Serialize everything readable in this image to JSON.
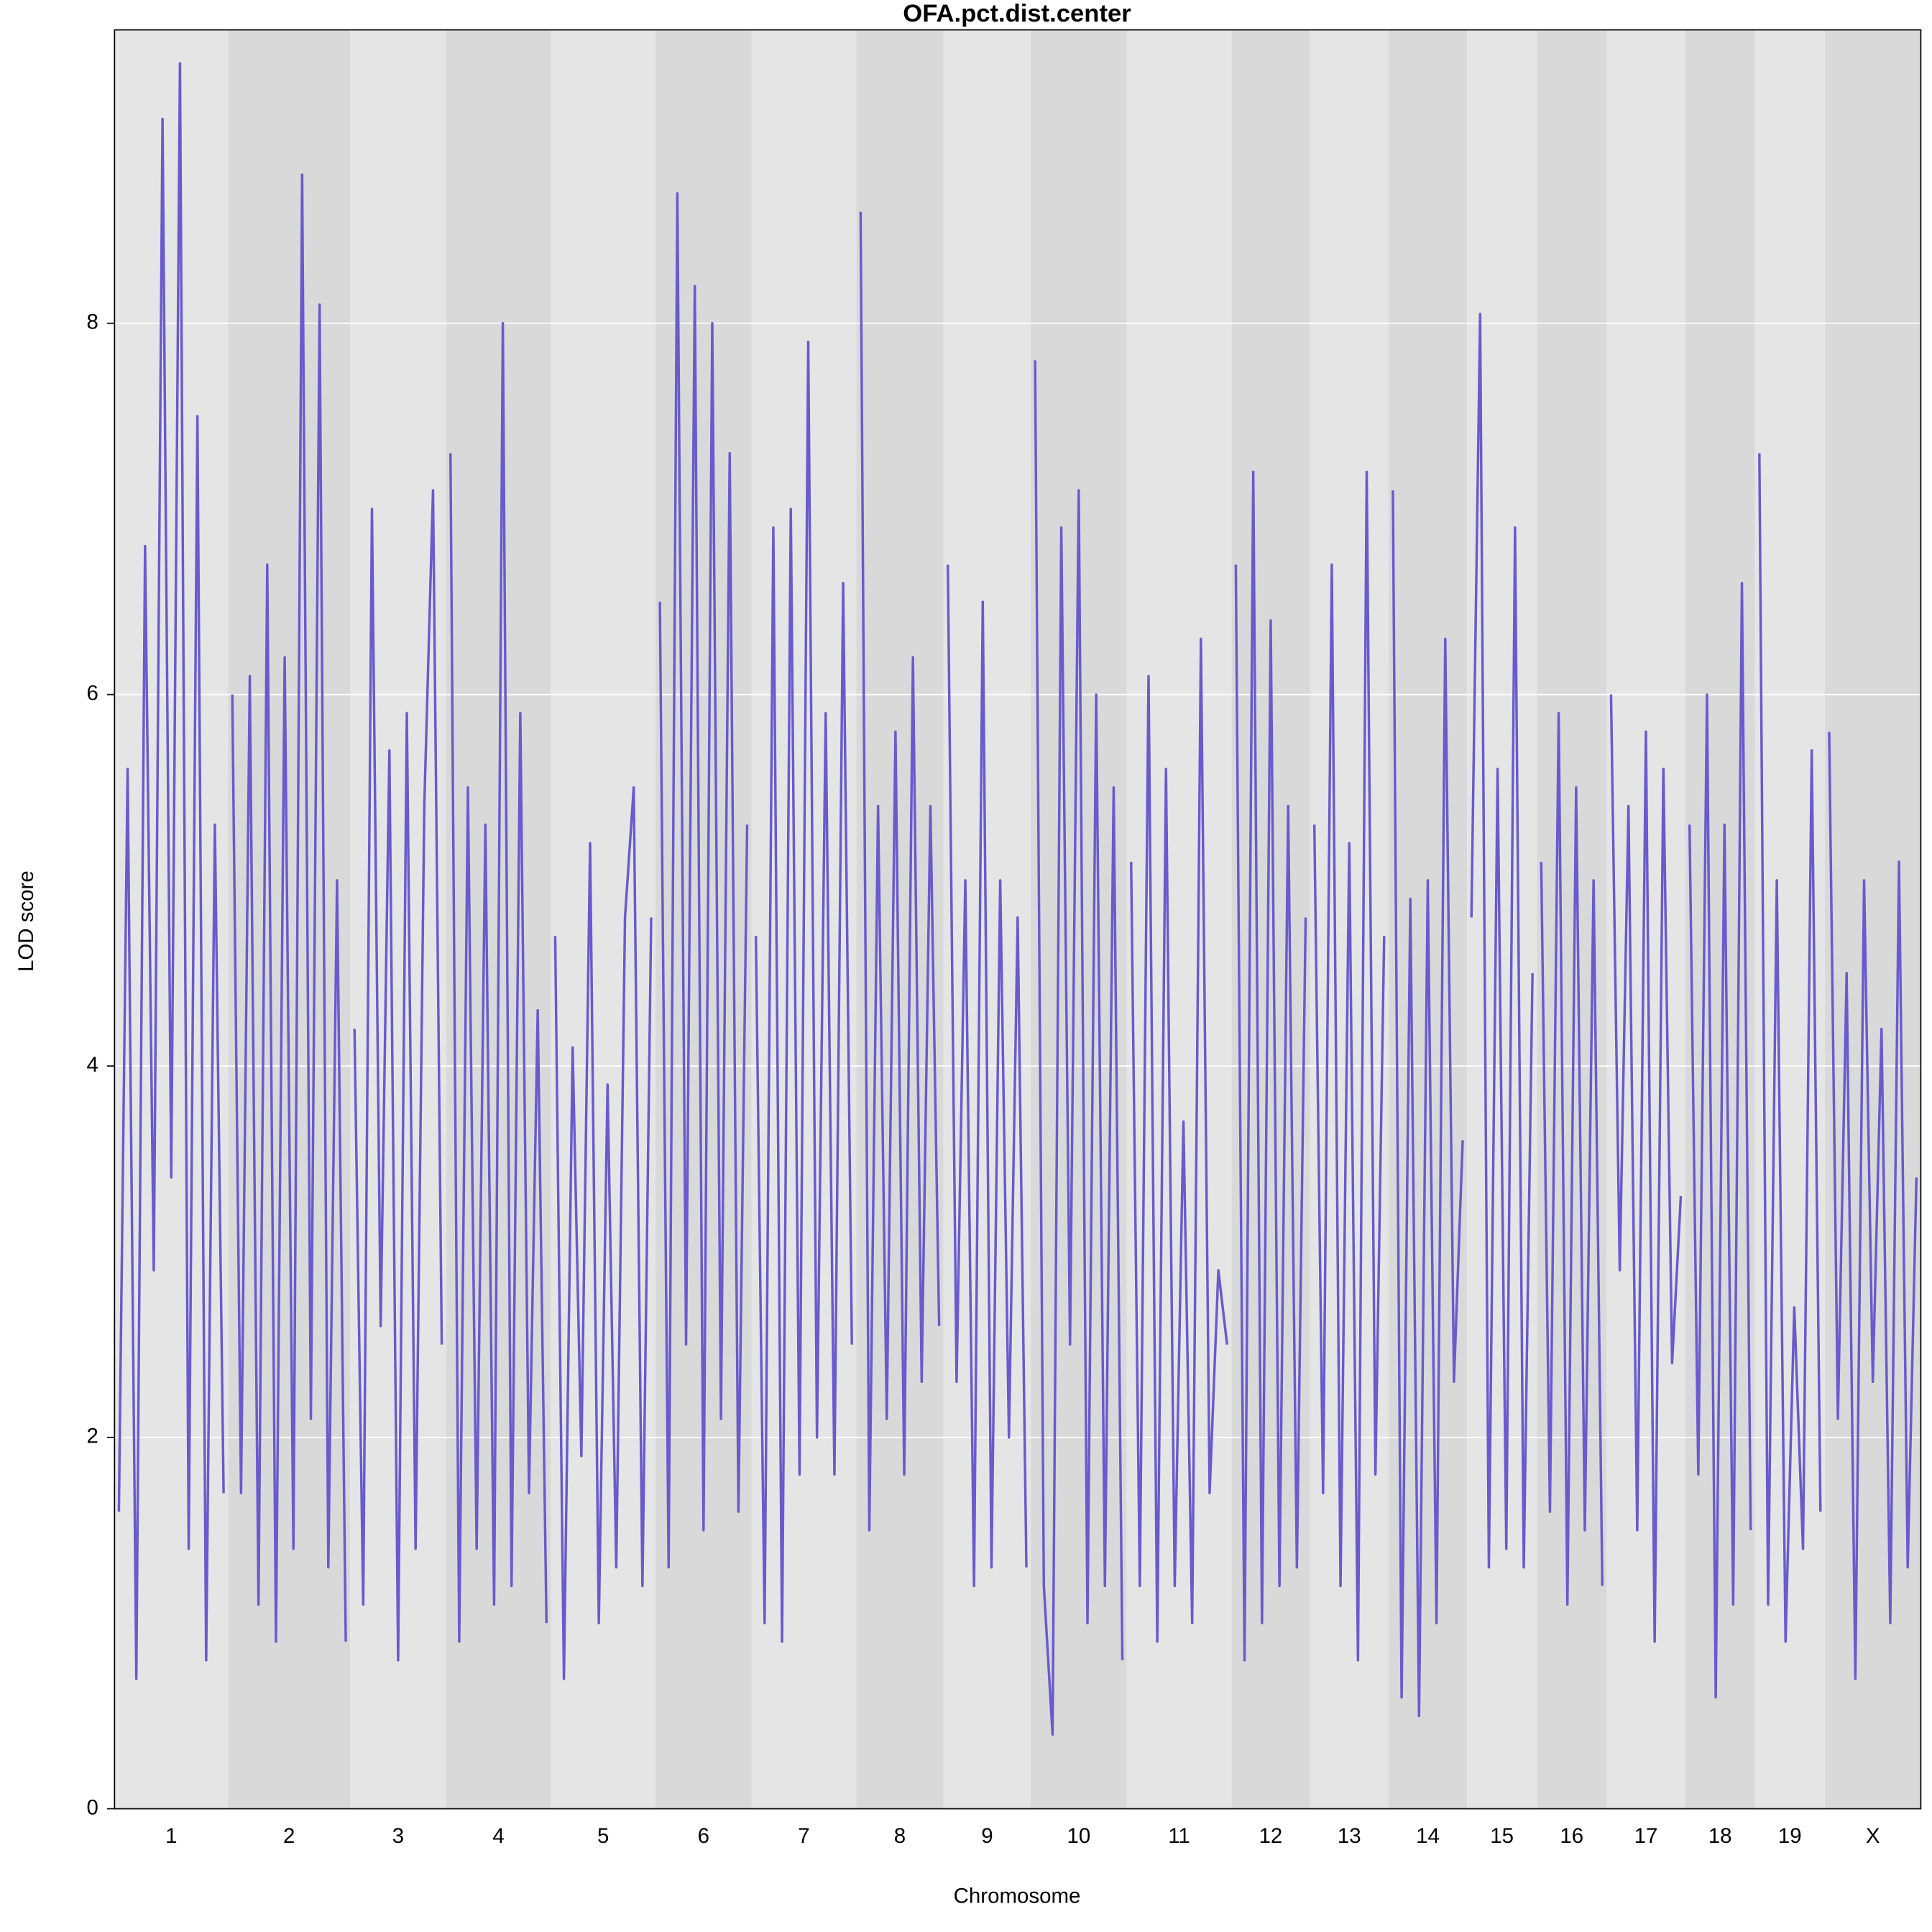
{
  "chart_data": {
    "type": "line",
    "title": "OFA.pct.dist.center",
    "x_label": "Chromosome",
    "y_label": "LOD score",
    "color": "#6a5acd",
    "ylim": [
      0,
      9.58
    ],
    "yticks": [
      0,
      2,
      4,
      6,
      8
    ],
    "grid": true,
    "chromosomes": [
      {
        "name": "1",
        "values": [
          1.6,
          5.6,
          0.7,
          6.8,
          2.9,
          9.1,
          3.4,
          9.4,
          1.4,
          7.5,
          0.8,
          5.3,
          1.7
        ]
      },
      {
        "name": "2",
        "values": [
          6.0,
          1.7,
          6.1,
          1.1,
          6.7,
          0.9,
          6.2,
          1.4,
          8.8,
          2.1,
          8.1,
          1.3,
          5.0,
          0.9
        ]
      },
      {
        "name": "3",
        "values": [
          4.2,
          1.1,
          7.0,
          2.6,
          5.7,
          0.8,
          5.9,
          1.4,
          5.4,
          7.1,
          2.5
        ]
      },
      {
        "name": "4",
        "values": [
          7.3,
          0.9,
          5.5,
          1.4,
          5.3,
          1.1,
          8.0,
          1.2,
          5.9,
          1.7,
          4.3,
          1.0
        ]
      },
      {
        "name": "5",
        "values": [
          4.7,
          0.7,
          4.1,
          1.9,
          5.2,
          1.0,
          3.9,
          1.3,
          4.8,
          5.5,
          1.2,
          4.8
        ]
      },
      {
        "name": "6",
        "values": [
          6.5,
          1.3,
          8.7,
          2.5,
          8.2,
          1.5,
          8.0,
          2.1,
          7.3,
          1.6,
          5.3
        ]
      },
      {
        "name": "7",
        "values": [
          4.7,
          1.0,
          6.9,
          0.9,
          7.0,
          1.8,
          7.9,
          2.0,
          5.9,
          1.8,
          6.6,
          2.5
        ]
      },
      {
        "name": "8",
        "values": [
          8.6,
          1.5,
          5.4,
          2.1,
          5.8,
          1.8,
          6.2,
          2.3,
          5.4,
          2.6
        ]
      },
      {
        "name": "9",
        "values": [
          6.7,
          2.3,
          5.0,
          1.2,
          6.5,
          1.3,
          5.0,
          2.0,
          4.8,
          1.3
        ]
      },
      {
        "name": "10",
        "values": [
          7.8,
          1.2,
          0.4,
          6.9,
          2.5,
          7.1,
          1.0,
          6.0,
          1.2,
          5.5,
          0.8
        ]
      },
      {
        "name": "11",
        "values": [
          5.1,
          1.2,
          6.1,
          0.9,
          5.6,
          1.2,
          3.7,
          1.0,
          6.3,
          1.7,
          2.9,
          2.5
        ]
      },
      {
        "name": "12",
        "values": [
          6.7,
          0.8,
          7.2,
          1.0,
          6.4,
          1.2,
          5.4,
          1.3,
          4.8
        ]
      },
      {
        "name": "13",
        "values": [
          5.3,
          1.7,
          6.7,
          1.2,
          5.2,
          0.8,
          7.2,
          1.8,
          4.7
        ]
      },
      {
        "name": "14",
        "values": [
          7.1,
          0.6,
          4.9,
          0.5,
          5.0,
          1.0,
          6.3,
          2.3,
          3.6
        ]
      },
      {
        "name": "15",
        "values": [
          4.8,
          8.05,
          1.3,
          5.6,
          1.4,
          6.9,
          1.3,
          4.5
        ]
      },
      {
        "name": "16",
        "values": [
          5.1,
          1.6,
          5.9,
          1.1,
          5.5,
          1.5,
          5.0,
          1.2
        ]
      },
      {
        "name": "17",
        "values": [
          6.0,
          2.9,
          5.4,
          1.5,
          5.8,
          0.9,
          5.6,
          2.4,
          3.3
        ]
      },
      {
        "name": "18",
        "values": [
          5.3,
          1.8,
          6.0,
          0.6,
          5.3,
          1.1,
          6.6,
          1.5
        ]
      },
      {
        "name": "19",
        "values": [
          7.3,
          1.1,
          5.0,
          0.9,
          2.7,
          1.4,
          5.7,
          1.6
        ]
      },
      {
        "name": "X",
        "values": [
          5.8,
          2.1,
          4.5,
          0.7,
          5.0,
          2.3,
          4.2,
          1.0,
          5.1,
          1.3,
          3.4
        ]
      }
    ]
  }
}
